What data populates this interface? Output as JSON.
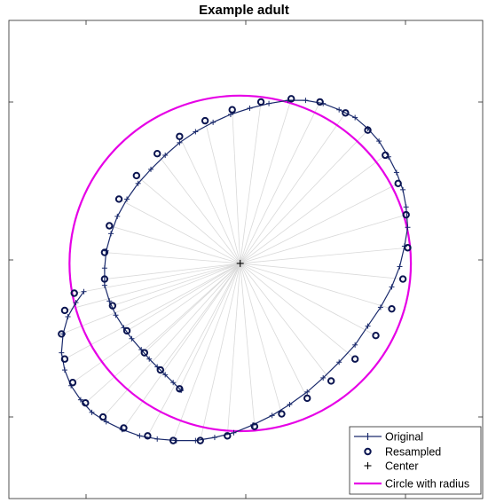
{
  "chart_data": {
    "type": "scatter",
    "title": "Example adult",
    "xlim": [
      -1.45,
      1.52
    ],
    "ylim": [
      -1.5,
      1.55
    ],
    "grid": false,
    "legend_placement": "bottom-right",
    "center": [
      0,
      0
    ],
    "circle_radius": 1.07,
    "series": [
      {
        "name": "Original",
        "style": "line with plus markers",
        "color": "#1a2a6c",
        "x": [
          -0.37,
          -0.42,
          -0.47,
          -0.52,
          -0.57,
          -0.62,
          -0.68,
          -0.73,
          -0.78,
          -0.82,
          -0.85,
          -0.85,
          -0.84,
          -0.81,
          -0.77,
          -0.71,
          -0.64,
          -0.56,
          -0.47,
          -0.38,
          -0.28,
          -0.17,
          -0.06,
          0.06,
          0.18,
          0.3,
          0.41,
          0.52,
          0.62,
          0.72,
          0.8,
          0.87,
          0.93,
          0.98,
          1.02,
          1.04,
          1.05,
          1.03,
          1.0,
          0.95,
          0.88,
          0.8,
          0.72,
          0.62,
          0.52,
          0.42,
          0.31,
          0.2,
          0.08,
          -0.04,
          -0.16,
          -0.28,
          -0.4,
          -0.52,
          -0.63,
          -0.74,
          -0.84,
          -0.93,
          -1.0,
          -1.06,
          -1.1,
          -1.12,
          -1.11,
          -1.08,
          -1.03,
          -0.98
        ],
        "y": [
          -0.81,
          -0.76,
          -0.71,
          -0.66,
          -0.61,
          -0.55,
          -0.48,
          -0.41,
          -0.33,
          -0.24,
          -0.14,
          -0.03,
          0.08,
          0.19,
          0.3,
          0.41,
          0.51,
          0.6,
          0.69,
          0.77,
          0.84,
          0.9,
          0.95,
          0.99,
          1.02,
          1.04,
          1.04,
          1.02,
          0.98,
          0.93,
          0.86,
          0.78,
          0.68,
          0.58,
          0.47,
          0.36,
          0.23,
          0.11,
          -0.02,
          -0.15,
          -0.28,
          -0.4,
          -0.52,
          -0.63,
          -0.73,
          -0.82,
          -0.9,
          -0.97,
          -1.03,
          -1.08,
          -1.11,
          -1.13,
          -1.13,
          -1.12,
          -1.1,
          -1.06,
          -1.01,
          -0.95,
          -0.87,
          -0.78,
          -0.68,
          -0.57,
          -0.45,
          -0.34,
          -0.25,
          -0.18
        ]
      },
      {
        "name": "Resampled",
        "style": "open circle markers",
        "color": "#0a1450",
        "x": [
          -0.38,
          -0.5,
          -0.6,
          -0.71,
          -0.8,
          -0.85,
          -0.85,
          -0.82,
          -0.76,
          -0.65,
          -0.52,
          -0.38,
          -0.22,
          -0.05,
          0.13,
          0.32,
          0.5,
          0.66,
          0.8,
          0.91,
          0.99,
          1.04,
          1.05,
          1.02,
          0.95,
          0.85,
          0.72,
          0.57,
          0.42,
          0.26,
          0.09,
          -0.08,
          -0.25,
          -0.42,
          -0.58,
          -0.73,
          -0.86,
          -0.97,
          -1.05,
          -1.1,
          -1.12,
          -1.1,
          -1.04
        ],
        "y": [
          -0.8,
          -0.68,
          -0.57,
          -0.43,
          -0.27,
          -0.1,
          0.07,
          0.24,
          0.41,
          0.56,
          0.7,
          0.81,
          0.91,
          0.98,
          1.03,
          1.05,
          1.03,
          0.96,
          0.85,
          0.69,
          0.51,
          0.31,
          0.1,
          -0.1,
          -0.29,
          -0.46,
          -0.61,
          -0.75,
          -0.86,
          -0.96,
          -1.04,
          -1.1,
          -1.13,
          -1.13,
          -1.1,
          -1.05,
          -0.98,
          -0.89,
          -0.76,
          -0.61,
          -0.45,
          -0.3,
          -0.19
        ]
      },
      {
        "name": "Center",
        "style": "plus marker",
        "color": "#000000",
        "x": [
          0
        ],
        "y": [
          0
        ]
      },
      {
        "name": "Circle with radius",
        "style": "line",
        "color": "#e600e6"
      }
    ],
    "spokes": 43
  }
}
